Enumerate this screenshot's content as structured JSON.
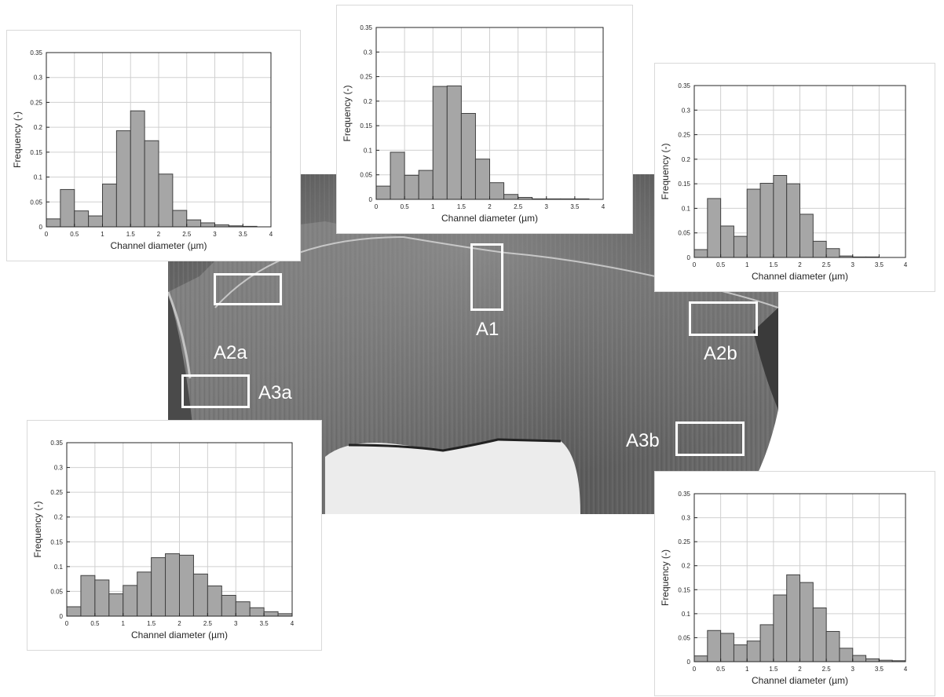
{
  "colors": {
    "bar_fill": "#a6a6a6",
    "bar_stroke": "#404040",
    "grid": "#d0d0d0",
    "label_color": "#ffffff"
  },
  "regions": {
    "A1": "A1",
    "A2a": "A2a",
    "A2b": "A2b",
    "A3a": "A3a",
    "A3b": "A3b"
  },
  "chart_data": [
    {
      "id": "hist-A2a",
      "type": "bar",
      "xlabel": "Channel diameter (µm)",
      "ylabel": "Frequency (-)",
      "xlim": [
        0,
        4
      ],
      "ylim": [
        0,
        0.35
      ],
      "xticks": [
        "0",
        "0.5",
        "1",
        "1.5",
        "2",
        "2.5",
        "3",
        "3.5",
        "4"
      ],
      "yticks": [
        "0",
        "0.05",
        "0.1",
        "0.15",
        "0.2",
        "0.25",
        "0.3",
        "0.35"
      ],
      "bin_edges": [
        0,
        0.25,
        0.5,
        0.75,
        1,
        1.25,
        1.5,
        1.75,
        2,
        2.25,
        2.5,
        2.75,
        3,
        3.25,
        3.5,
        3.75,
        4
      ],
      "values": [
        0.016,
        0.075,
        0.032,
        0.022,
        0.086,
        0.193,
        0.233,
        0.173,
        0.106,
        0.033,
        0.014,
        0.008,
        0.004,
        0.002,
        0.001,
        0
      ]
    },
    {
      "id": "hist-A1",
      "type": "bar",
      "xlabel": "Channel diameter (µm)",
      "ylabel": "Frequency (-)",
      "xlim": [
        0,
        4
      ],
      "ylim": [
        0,
        0.35
      ],
      "xticks": [
        "0",
        "0.5",
        "1",
        "1.5",
        "2",
        "2.5",
        "3",
        "3.5",
        "4"
      ],
      "yticks": [
        "0",
        "0.05",
        "0.1",
        "0.15",
        "0.2",
        "0.25",
        "0.3",
        "0.35"
      ],
      "bin_edges": [
        0,
        0.25,
        0.5,
        0.75,
        1,
        1.25,
        1.5,
        1.75,
        2,
        2.25,
        2.5,
        2.75,
        3,
        3.25,
        3.5,
        3.75,
        4
      ],
      "values": [
        0.027,
        0.096,
        0.049,
        0.059,
        0.23,
        0.231,
        0.175,
        0.082,
        0.034,
        0.01,
        0.004,
        0.001,
        0.001,
        0.001,
        0.001,
        0
      ]
    },
    {
      "id": "hist-A2b",
      "type": "bar",
      "xlabel": "Channel diameter (µm)",
      "ylabel": "Frequency (-)",
      "xlim": [
        0,
        4
      ],
      "ylim": [
        0,
        0.35
      ],
      "xticks": [
        "0",
        "0.5",
        "1",
        "1.5",
        "2",
        "2.5",
        "3",
        "3.5",
        "4"
      ],
      "yticks": [
        "0",
        "0.05",
        "0.1",
        "0.15",
        "0.2",
        "0.25",
        "0.3",
        "0.35"
      ],
      "bin_edges": [
        0,
        0.25,
        0.5,
        0.75,
        1,
        1.25,
        1.5,
        1.75,
        2,
        2.25,
        2.5,
        2.75,
        3,
        3.25,
        3.5,
        3.75,
        4
      ],
      "values": [
        0.016,
        0.12,
        0.064,
        0.043,
        0.139,
        0.151,
        0.167,
        0.15,
        0.088,
        0.033,
        0.018,
        0.003,
        0.001,
        0.001,
        0,
        0
      ]
    },
    {
      "id": "hist-A3a",
      "type": "bar",
      "xlabel": "Channel diameter (µm)",
      "ylabel": "Frequency (-)",
      "xlim": [
        0,
        4
      ],
      "ylim": [
        0,
        0.35
      ],
      "xticks": [
        "0",
        "0.5",
        "1",
        "1.5",
        "2",
        "2.5",
        "3",
        "3.5",
        "4"
      ],
      "yticks": [
        "0",
        "0.05",
        "0.1",
        "0.15",
        "0.2",
        "0.25",
        "0.3",
        "0.35"
      ],
      "bin_edges": [
        0,
        0.25,
        0.5,
        0.75,
        1,
        1.25,
        1.5,
        1.75,
        2,
        2.25,
        2.5,
        2.75,
        3,
        3.25,
        3.5,
        3.75,
        4
      ],
      "values": [
        0.019,
        0.082,
        0.073,
        0.045,
        0.062,
        0.089,
        0.118,
        0.126,
        0.123,
        0.085,
        0.061,
        0.042,
        0.029,
        0.017,
        0.009,
        0.005
      ]
    },
    {
      "id": "hist-A3b",
      "type": "bar",
      "xlabel": "Channel diameter (µm)",
      "ylabel": "Frequency (-)",
      "xlim": [
        0,
        4
      ],
      "ylim": [
        0,
        0.35
      ],
      "xticks": [
        "0",
        "0.5",
        "1",
        "1.5",
        "2",
        "2.5",
        "3",
        "3.5",
        "4"
      ],
      "yticks": [
        "0",
        "0.05",
        "0.1",
        "0.15",
        "0.2",
        "0.25",
        "0.3",
        "0.35"
      ],
      "bin_edges": [
        0,
        0.25,
        0.5,
        0.75,
        1,
        1.25,
        1.5,
        1.75,
        2,
        2.25,
        2.5,
        2.75,
        3,
        3.25,
        3.5,
        3.75,
        4
      ],
      "values": [
        0.012,
        0.065,
        0.059,
        0.035,
        0.043,
        0.077,
        0.139,
        0.181,
        0.165,
        0.112,
        0.063,
        0.028,
        0.013,
        0.006,
        0.003,
        0.002
      ]
    }
  ]
}
